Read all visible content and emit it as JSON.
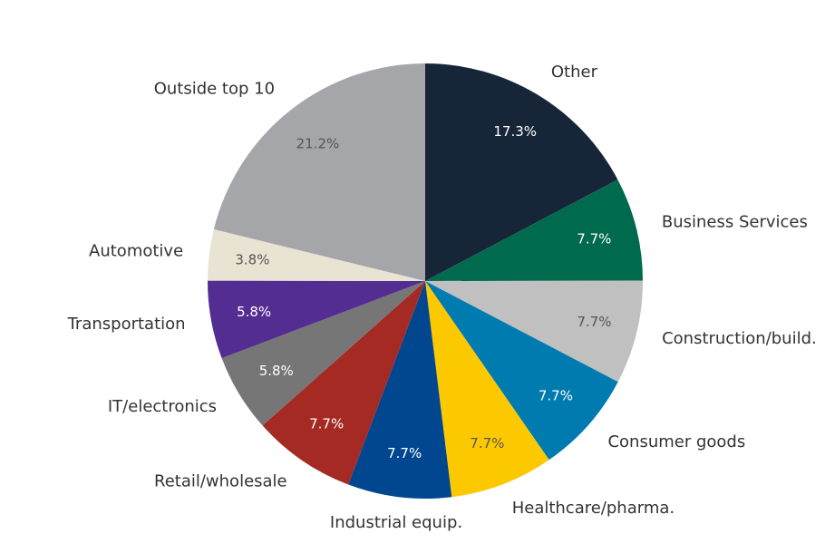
{
  "chart_data": {
    "type": "pie",
    "categories": [
      "Other",
      "Business Services",
      "Construction/build.",
      "Consumer goods",
      "Healthcare/pharma.",
      "Industrial equip.",
      "Retail/wholesale",
      "IT/electronics",
      "Transportation",
      "Automotive",
      "Outside top 10"
    ],
    "values": [
      17.3,
      7.7,
      7.7,
      7.7,
      7.7,
      7.7,
      7.7,
      5.8,
      5.8,
      3.8,
      21.2
    ],
    "value_labels": [
      "17.3%",
      "7.7%",
      "7.7%",
      "7.7%",
      "7.7%",
      "7.7%",
      "7.7%",
      "5.8%",
      "5.8%",
      "3.8%",
      "21.2%"
    ],
    "colors": [
      "#172538",
      "#006a4e",
      "#c0c0c0",
      "#007bb0",
      "#fcc900",
      "#00478f",
      "#a52a24",
      "#767676",
      "#532d91",
      "#e8e3d2",
      "#a5a6aa"
    ]
  }
}
